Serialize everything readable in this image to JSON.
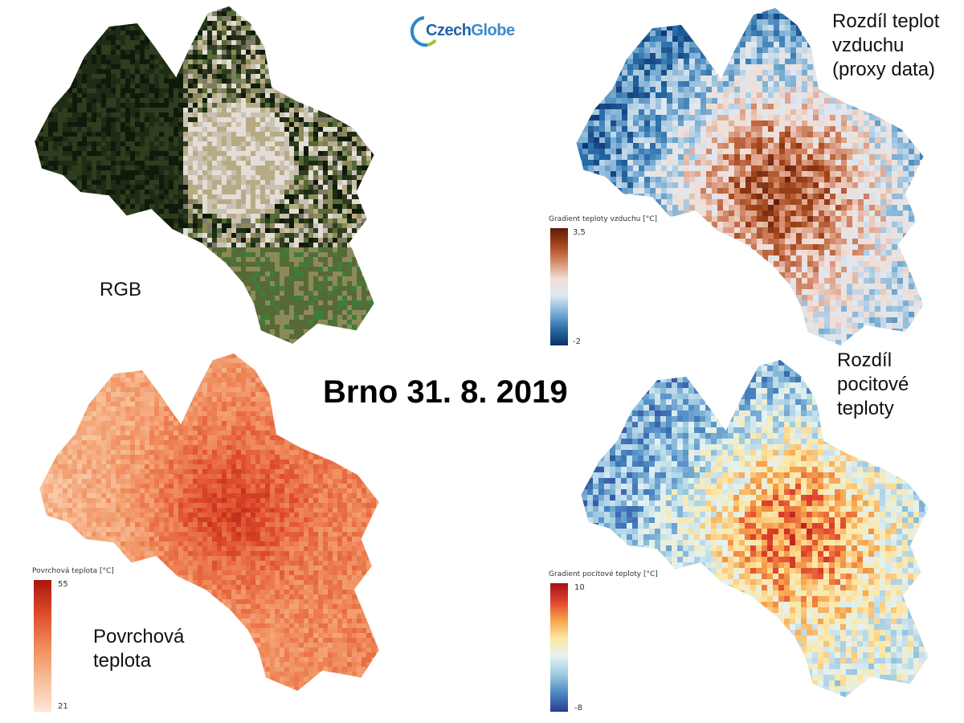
{
  "title": "Brno 31. 8. 2019",
  "logo": {
    "text_a": "Czech",
    "text_b": "Globe",
    "color_a": "#1f63a8",
    "color_b": "#3a8bd0",
    "arc_color": "#2d86c9",
    "arc_accent": "#9ec22e"
  },
  "panels": {
    "rgb": {
      "label": "RGB",
      "palette": [
        "#0f1a0c",
        "#1d2c14",
        "#2f3d1e",
        "#566a36",
        "#8d8a5a",
        "#b7ab86",
        "#c9c1b1",
        "#e4ddd6",
        "#7d7a66",
        "#3f7c3a"
      ]
    },
    "air": {
      "label_lines": [
        "Rozdíl teplot",
        "vzduchu",
        "(proxy data)"
      ],
      "legend": {
        "title": "Gradient teploty vzduchu [°C]",
        "max": "3,5",
        "min": "-2",
        "colors": [
          "#5e1a0a",
          "#a4461b",
          "#d4896a",
          "#f1ddd4",
          "#dfe8f1",
          "#7fb2d6",
          "#2a6ea8",
          "#0c2f6a"
        ]
      }
    },
    "surface": {
      "label_lines": [
        "Povrchová",
        "teplota"
      ],
      "legend": {
        "title": "Povrchová teplota [°C]",
        "max": "55",
        "min": "21",
        "colors": [
          "#a8170f",
          "#de4a2a",
          "#f08a5a",
          "#f7bd95",
          "#fde7d9"
        ]
      }
    },
    "feel": {
      "label_lines": [
        "Rozdíl",
        "pocitové",
        "teploty"
      ],
      "legend": {
        "title": "Gradient pocitové teploty [°C]",
        "max": "10",
        "min": "-8",
        "colors": [
          "#a50f15",
          "#e0432e",
          "#f7a24b",
          "#fde7a3",
          "#e3f2f2",
          "#9cc9e1",
          "#4a87c2",
          "#2c3a92"
        ]
      }
    }
  }
}
